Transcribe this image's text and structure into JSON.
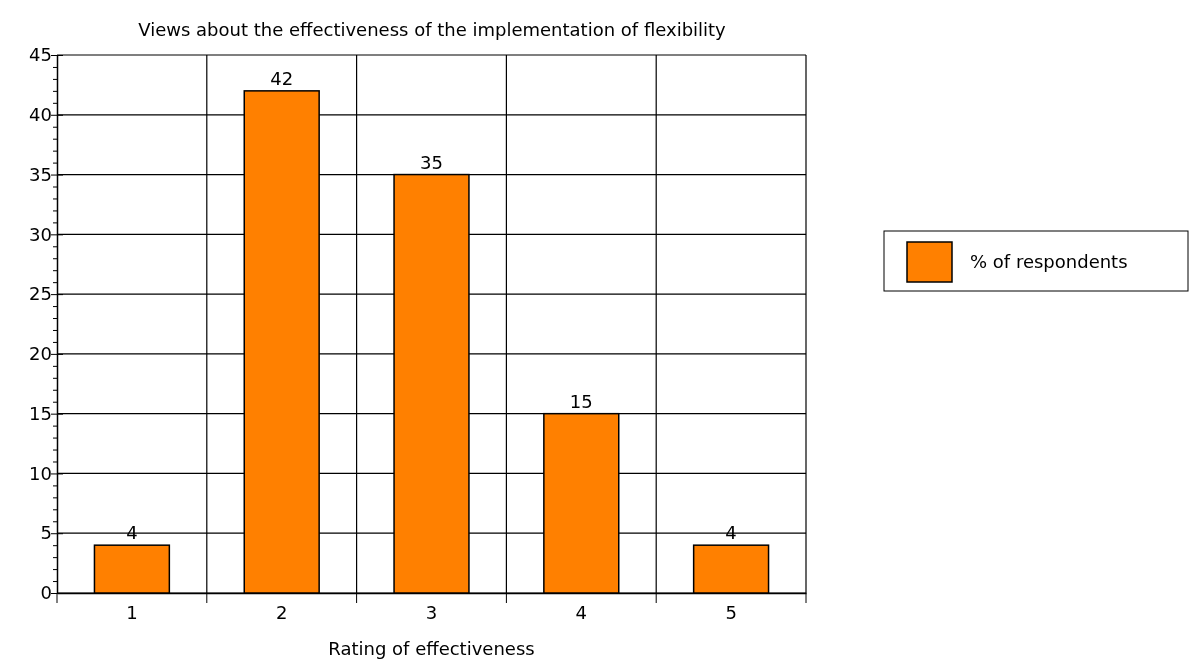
{
  "chart_data": {
    "type": "bar",
    "title": "Views about the effectiveness of the implementation of flexibility",
    "xlabel": "Rating of effectiveness",
    "categories": [
      "1",
      "2",
      "3",
      "4",
      "5"
    ],
    "series": [
      {
        "name": "% of respondents",
        "color": "#ff8000",
        "values": [
          4,
          42,
          35,
          15,
          4
        ]
      }
    ],
    "ylim": [
      0,
      45
    ],
    "yticks": [
      0,
      {
        "value": 1,
        "label": null
      },
      {
        "value": 2,
        "label": null
      },
      {
        "value": 3,
        "label": null
      },
      {
        "value": 4,
        "label": null
      },
      5,
      {
        "value": 6,
        "label": null
      },
      {
        "value": 7,
        "label": null
      },
      {
        "value": 8,
        "label": null
      },
      {
        "value": 9,
        "label": null
      },
      10,
      {
        "value": 11,
        "label": null
      },
      {
        "value": 12,
        "label": null
      },
      {
        "value": 13,
        "label": null
      },
      {
        "value": 14,
        "label": null
      },
      15,
      {
        "value": 16,
        "label": null
      },
      {
        "value": 17,
        "label": null
      },
      {
        "value": 18,
        "label": null
      },
      {
        "value": 19,
        "label": null
      },
      20,
      {
        "value": 21,
        "label": null
      },
      {
        "value": 22,
        "label": null
      },
      {
        "value": 23,
        "label": null
      },
      {
        "value": 24,
        "label": null
      },
      25,
      {
        "value": 26,
        "label": null
      },
      {
        "value": 27,
        "label": null
      },
      {
        "value": 28,
        "label": null
      },
      {
        "value": 29,
        "label": null
      },
      30,
      {
        "value": 31,
        "label": null
      },
      {
        "value": 32,
        "label": null
      },
      {
        "value": 33,
        "label": null
      },
      {
        "value": 34,
        "label": null
      },
      35,
      {
        "value": 36,
        "label": null
      },
      {
        "value": 37,
        "label": null
      },
      {
        "value": 38,
        "label": null
      },
      {
        "value": 39,
        "label": null
      },
      40,
      {
        "value": 41,
        "label": null
      },
      {
        "value": 42,
        "label": null
      },
      {
        "value": 43,
        "label": null
      },
      {
        "value": 44,
        "label": null
      },
      45
    ],
    "grid": true,
    "data_labels": true,
    "legend": "right"
  }
}
